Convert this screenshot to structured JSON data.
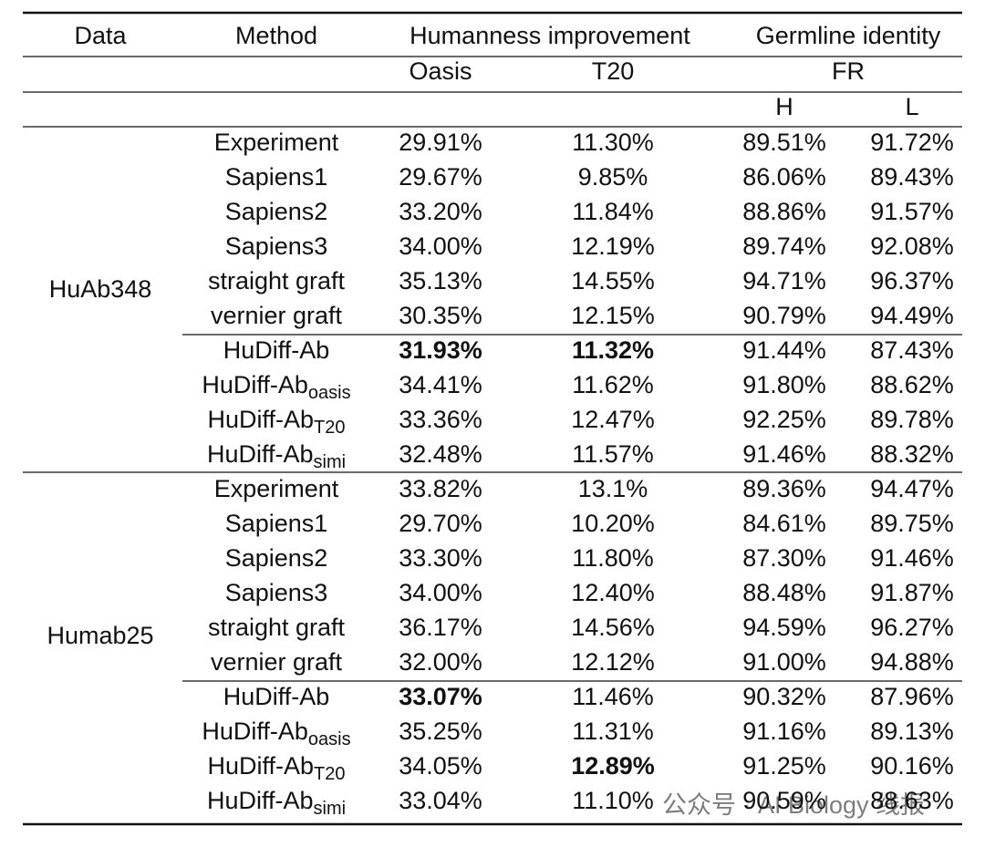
{
  "header": {
    "columns": [
      "Data",
      "Method",
      "Humanness improvement",
      "Germline identity"
    ],
    "subcolumns": [
      "Oasis",
      "T20",
      "FR"
    ],
    "subsubcolumns": [
      "H",
      "L"
    ]
  },
  "groups": [
    {
      "name": "HuAb348",
      "rows": [
        {
          "method": "Experiment",
          "values": [
            "29.91%",
            "11.30%",
            "89.51%",
            "91.72%"
          ]
        },
        {
          "method": "Sapiens1",
          "values": [
            "29.67%",
            "9.85%",
            "86.06%",
            "89.43%"
          ]
        },
        {
          "method": "Sapiens2",
          "values": [
            "33.20%",
            "11.84%",
            "88.86%",
            "91.57%"
          ]
        },
        {
          "method": "Sapiens3",
          "values": [
            "34.00%",
            "12.19%",
            "89.74%",
            "92.08%"
          ]
        },
        {
          "method": "straight graft",
          "values": [
            "35.13%",
            "14.55%",
            "94.71%",
            "96.37%"
          ]
        },
        {
          "method": "vernier graft",
          "values": [
            "30.35%",
            "12.15%",
            "90.79%",
            "94.49%"
          ]
        },
        {
          "method": "HuDiff-Ab",
          "values": [
            "31.93%",
            "11.32%",
            "91.44%",
            "87.43%"
          ],
          "bold": [
            0,
            1
          ]
        },
        {
          "method": "HuDiff-Ab",
          "sub": "oasis",
          "values": [
            "34.41%",
            "11.62%",
            "91.80%",
            "88.62%"
          ]
        },
        {
          "method": "HuDiff-Ab",
          "sub": "T20",
          "values": [
            "33.36%",
            "12.47%",
            "92.25%",
            "89.78%"
          ]
        },
        {
          "method": "HuDiff-Ab",
          "sub": "simi",
          "values": [
            "32.48%",
            "11.57%",
            "91.46%",
            "88.32%"
          ]
        }
      ]
    },
    {
      "name": "Humab25",
      "rows": [
        {
          "method": "Experiment",
          "values": [
            "33.82%",
            "13.1%",
            "89.36%",
            "94.47%"
          ]
        },
        {
          "method": "Sapiens1",
          "values": [
            "29.70%",
            "10.20%",
            "84.61%",
            "89.75%"
          ]
        },
        {
          "method": "Sapiens2",
          "values": [
            "33.30%",
            "11.80%",
            "87.30%",
            "91.46%"
          ]
        },
        {
          "method": "Sapiens3",
          "values": [
            "34.00%",
            "12.40%",
            "88.48%",
            "91.87%"
          ]
        },
        {
          "method": "straight graft",
          "values": [
            "36.17%",
            "14.56%",
            "94.59%",
            "96.27%"
          ]
        },
        {
          "method": "vernier graft",
          "values": [
            "32.00%",
            "12.12%",
            "91.00%",
            "94.88%"
          ]
        },
        {
          "method": "HuDiff-Ab",
          "values": [
            "33.07%",
            "11.46%",
            "90.32%",
            "87.96%"
          ],
          "bold": [
            0
          ]
        },
        {
          "method": "HuDiff-Ab",
          "sub": "oasis",
          "values": [
            "35.25%",
            "11.31%",
            "91.16%",
            "89.13%"
          ]
        },
        {
          "method": "HuDiff-Ab",
          "sub": "T20",
          "values": [
            "34.05%",
            "12.89%",
            "91.25%",
            "90.16%"
          ],
          "bold": [
            1
          ]
        },
        {
          "method": "HuDiff-Ab",
          "sub": "simi",
          "values": [
            "33.04%",
            "11.10%",
            "90.59%",
            "88.63%"
          ]
        }
      ]
    }
  ],
  "watermark": "公众号 · AI Biology 线报"
}
